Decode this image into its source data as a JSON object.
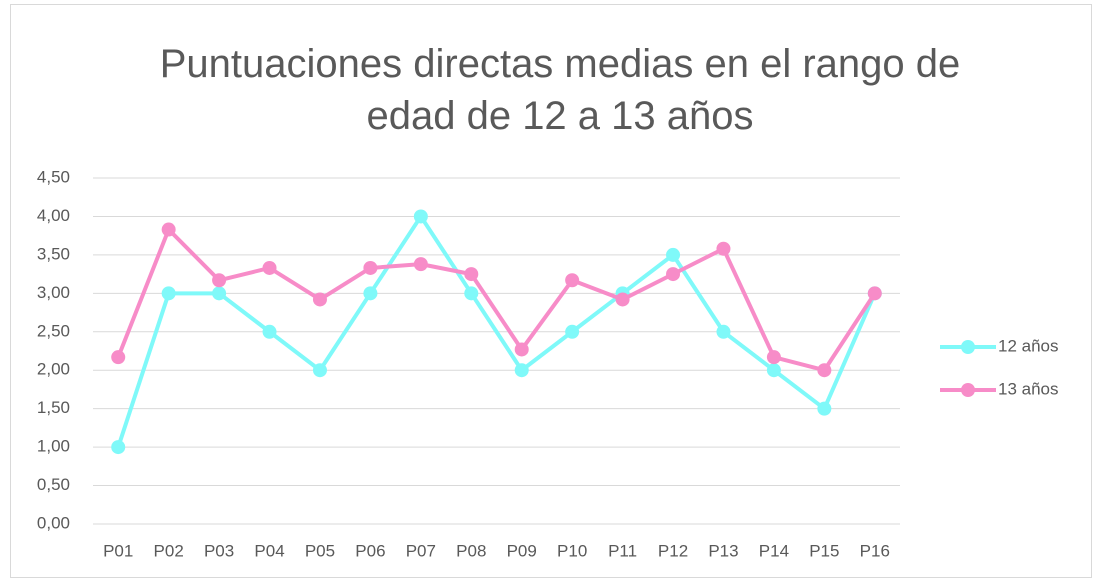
{
  "chart_data": {
    "type": "line",
    "title": "Puntuaciones directas medias en el rango de edad de 12 a 13 años",
    "categories": [
      "P01",
      "P02",
      "P03",
      "P04",
      "P05",
      "P06",
      "P07",
      "P08",
      "P09",
      "P10",
      "P11",
      "P12",
      "P13",
      "P14",
      "P15",
      "P16"
    ],
    "series": [
      {
        "name": "12 años",
        "color": "#7ff9f9",
        "values": [
          1.0,
          3.0,
          3.0,
          2.5,
          2.0,
          3.0,
          4.0,
          3.0,
          2.0,
          2.5,
          3.0,
          3.5,
          2.5,
          2.0,
          1.5,
          3.0
        ]
      },
      {
        "name": "13 años",
        "color": "#f78cc8",
        "values": [
          2.17,
          3.83,
          3.17,
          3.33,
          2.92,
          3.33,
          3.38,
          3.25,
          2.27,
          3.17,
          2.92,
          3.25,
          3.58,
          2.17,
          2.0,
          3.0
        ]
      }
    ],
    "ylim": [
      0,
      4.5
    ],
    "yticks": [
      {
        "value": 0,
        "label": "0,00"
      },
      {
        "value": 0.5,
        "label": "0,50"
      },
      {
        "value": 1,
        "label": "1,00"
      },
      {
        "value": 1.5,
        "label": "1,50"
      },
      {
        "value": 2,
        "label": "2,00"
      },
      {
        "value": 2.5,
        "label": "2,50"
      },
      {
        "value": 3,
        "label": "3,00"
      },
      {
        "value": 3.5,
        "label": "3,50"
      },
      {
        "value": 4,
        "label": "4,00"
      },
      {
        "value": 4.5,
        "label": "4,50"
      }
    ],
    "grid": true,
    "legend": "right"
  }
}
